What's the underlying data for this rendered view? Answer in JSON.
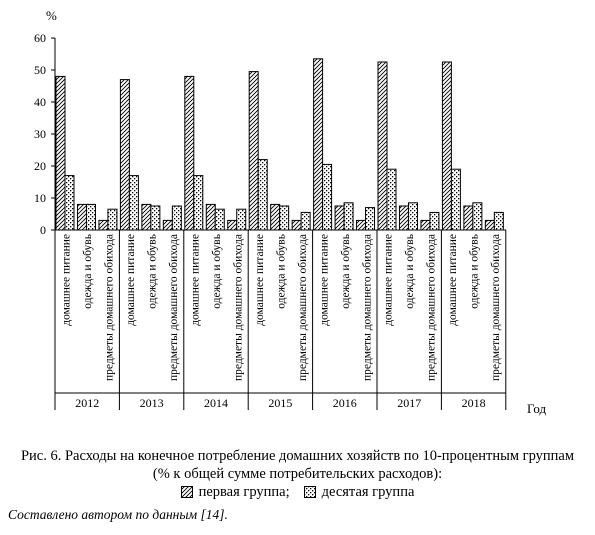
{
  "chart_data": {
    "type": "bar",
    "y_unit_label": "%",
    "x_axis_title": "Год",
    "ylim": [
      0,
      60
    ],
    "y_ticks": [
      0,
      10,
      20,
      30,
      40,
      50,
      60
    ],
    "years": [
      "2012",
      "2013",
      "2014",
      "2015",
      "2016",
      "2017",
      "2018"
    ],
    "categories": [
      "домашнее питание",
      "одежда и обувь",
      "предметы домашнего обихода"
    ],
    "series": [
      {
        "name": "первая группа",
        "values": [
          [
            48,
            8,
            3
          ],
          [
            47,
            8,
            3
          ],
          [
            48,
            8,
            3
          ],
          [
            49.5,
            8,
            3
          ],
          [
            53.5,
            7.5,
            3
          ],
          [
            52.5,
            7.5,
            3
          ],
          [
            52.5,
            7.5,
            3
          ]
        ]
      },
      {
        "name": "десятая группа",
        "values": [
          [
            17,
            8,
            6.5
          ],
          [
            17,
            7.5,
            7.5
          ],
          [
            17,
            6.5,
            6.5
          ],
          [
            22,
            7.5,
            5.5
          ],
          [
            20.5,
            8.5,
            7
          ],
          [
            19,
            8.5,
            5.5
          ],
          [
            19,
            8.5,
            5.5
          ]
        ]
      }
    ],
    "colors": {
      "first_group": "hatched-diagonal",
      "tenth_group": "dotted-crosshatch"
    }
  },
  "caption_line1": "Рис. 6. Расходы на конечное потребление домашних хозяйств по 10-процентным группам",
  "caption_line2": "(% к общей сумме потребительских расходов):",
  "legend": {
    "first": "первая группа;",
    "tenth": "десятая группа"
  },
  "source_note": "Составлено автором по данным [14]."
}
